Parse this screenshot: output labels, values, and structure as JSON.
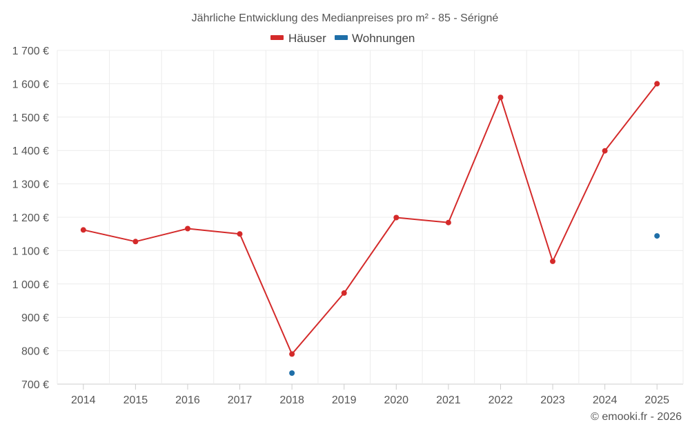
{
  "chart_data": {
    "type": "line",
    "title": "Jährliche Entwicklung des Medianpreises pro m² - 85 - Sérigné",
    "categories": [
      "2014",
      "2015",
      "2016",
      "2017",
      "2018",
      "2019",
      "2020",
      "2021",
      "2022",
      "2023",
      "2024",
      "2025"
    ],
    "series": [
      {
        "name": "Häuser",
        "color": "#d42a2a",
        "values": [
          1162,
          1127,
          1166,
          1150,
          790,
          973,
          1199,
          1184,
          1559,
          1068,
          1399,
          1600
        ]
      },
      {
        "name": "Wohnungen",
        "color": "#1f6fa8",
        "values": [
          null,
          null,
          null,
          null,
          733,
          null,
          null,
          null,
          null,
          null,
          null,
          1144
        ]
      }
    ],
    "ylim": [
      700,
      1700
    ],
    "yticks": [
      700,
      800,
      900,
      1000,
      1100,
      1200,
      1300,
      1400,
      1500,
      1600,
      1700
    ],
    "ytick_labels": [
      "700 €",
      "800 €",
      "900 €",
      "1 000 €",
      "1 100 €",
      "1 200 €",
      "1 300 €",
      "1 400 €",
      "1 500 €",
      "1 600 €",
      "1 700 €"
    ],
    "xlabel": "",
    "ylabel": "",
    "grid": true,
    "legend_position": "top-center"
  },
  "credit": "© emooki.fr - 2026"
}
